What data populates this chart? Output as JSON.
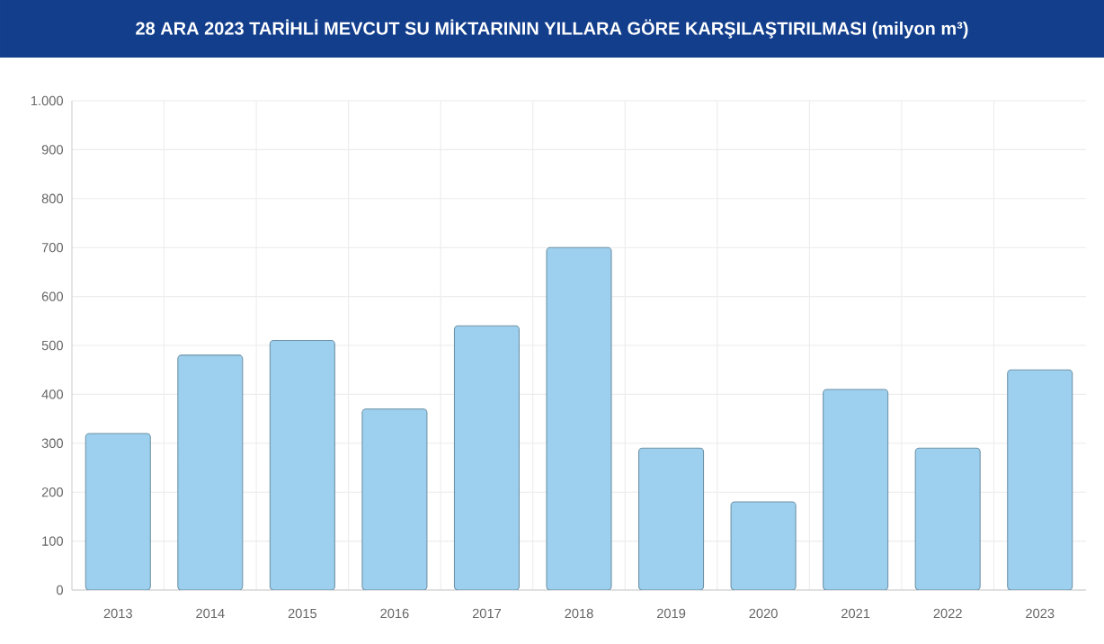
{
  "chart_data": {
    "type": "bar",
    "title": "28 ARA 2023 TARİHLİ MEVCUT SU MİKTARININ YILLARA GÖRE KARŞILAŞTIRILMASI (milyon m³)",
    "categories": [
      "2013",
      "2014",
      "2015",
      "2016",
      "2017",
      "2018",
      "2019",
      "2020",
      "2021",
      "2022",
      "2023"
    ],
    "values": [
      320,
      480,
      510,
      370,
      540,
      700,
      290,
      180,
      410,
      290,
      450
    ],
    "color": "#9dd0ee",
    "ylim": [
      0,
      1000
    ],
    "yticks": [
      0,
      100,
      200,
      300,
      400,
      500,
      600,
      700,
      800,
      900,
      {
        "value": 1000,
        "label": "1.000"
      }
    ],
    "grid": true
  }
}
